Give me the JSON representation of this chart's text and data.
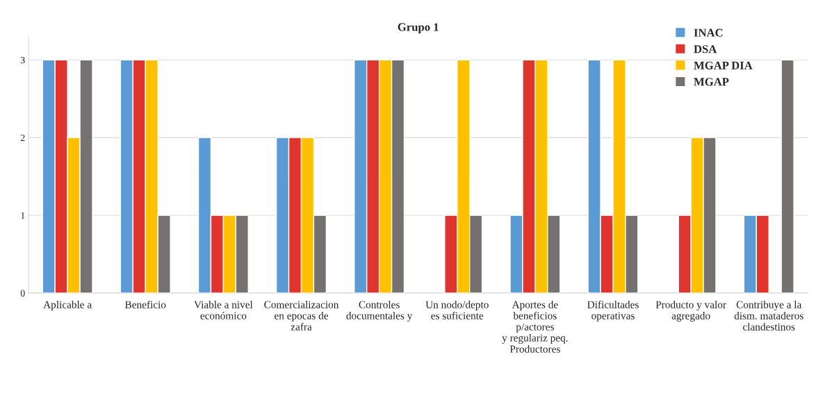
{
  "chart_data": {
    "type": "bar",
    "title": "Grupo 1",
    "categories": [
      "Aplicable a",
      "Beneficio",
      "Viable a nivel\neconómico",
      "Comercializacion\nen epocas de\nzafra",
      "Controles\ndocumentales y",
      "Un nodo/depto\nes suficiente",
      "Aportes de\nbeneficios\np/actores\ny regulariz peq.\nProductores",
      "Dificultades\noperativas",
      "Producto y valor\nagregado",
      "Contribuye a la\ndism. mataderos\nclandestinos"
    ],
    "series": [
      {
        "name": "INAC",
        "color": "#5b9bd5",
        "values": [
          3,
          3,
          2,
          2,
          3,
          null,
          1,
          3,
          null,
          1
        ]
      },
      {
        "name": "DSA",
        "color": "#e0342f",
        "values": [
          3,
          3,
          1,
          2,
          3,
          1,
          3,
          1,
          1,
          1
        ]
      },
      {
        "name": "MGAP DIA",
        "color": "#ffc000",
        "values": [
          2,
          3,
          1,
          2,
          3,
          3,
          3,
          3,
          2,
          null
        ]
      },
      {
        "name": "MGAP",
        "color": "#767171",
        "values": [
          3,
          1,
          1,
          1,
          3,
          1,
          1,
          1,
          2,
          3
        ]
      }
    ],
    "ylim": [
      0,
      3.3
    ],
    "yticks": [
      0,
      1,
      2,
      3
    ],
    "grid": "y",
    "legend": "top right"
  }
}
